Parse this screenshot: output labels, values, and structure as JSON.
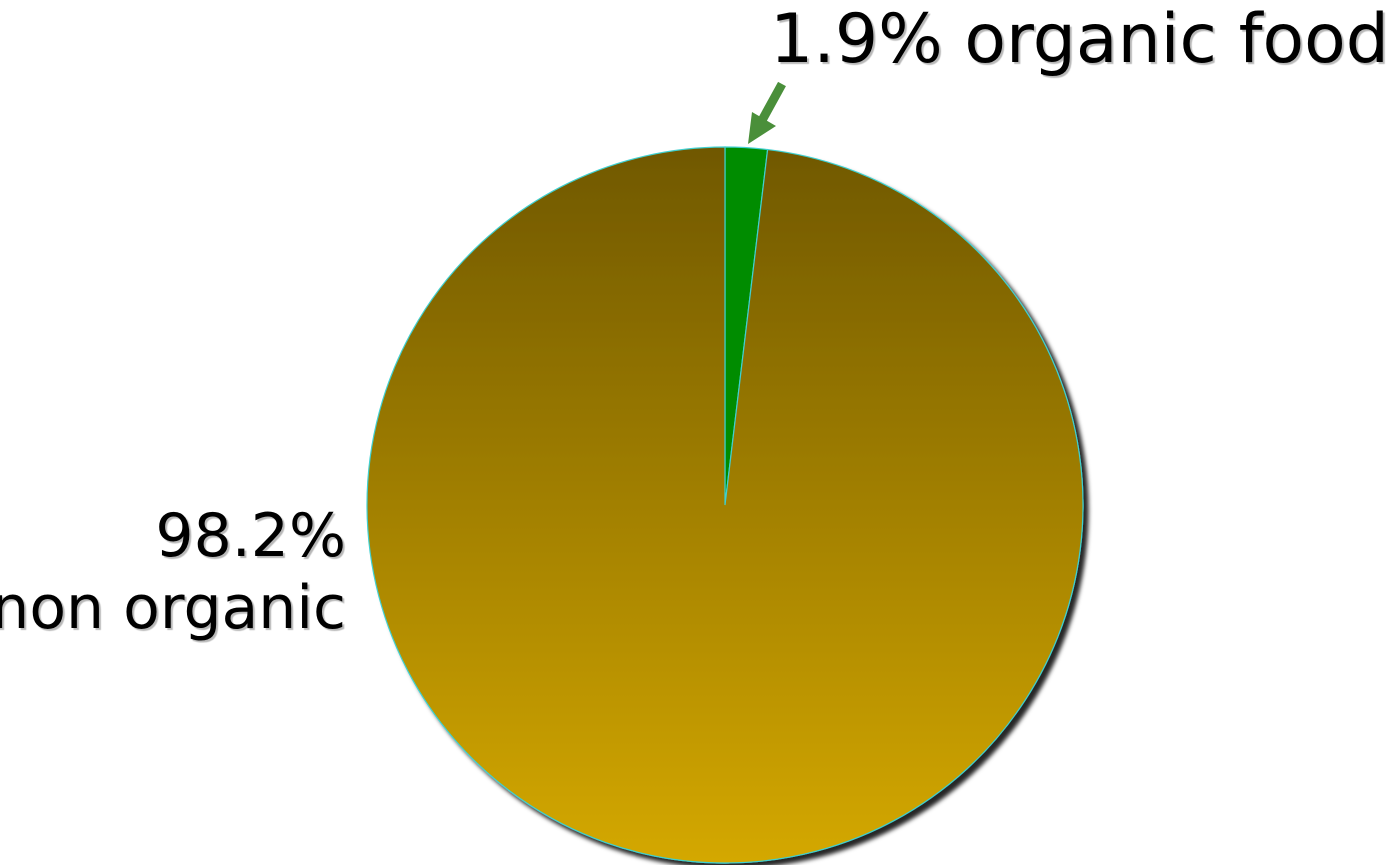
{
  "chart_data": {
    "type": "pie",
    "slices": [
      {
        "label": "organic food",
        "value": 1.9,
        "color": "#008c00"
      },
      {
        "label": "non organic",
        "value": 98.2,
        "color": "#b28a00"
      }
    ],
    "start_angle_deg": 0,
    "gradient": {
      "top": "#705800",
      "bottom": "#d4a800"
    },
    "pointer_color": "#4a8f3a",
    "labels": {
      "organic": "1.9% organic food",
      "nonorganic_pct": "98.2%",
      "nonorganic_name": "non organic"
    }
  }
}
